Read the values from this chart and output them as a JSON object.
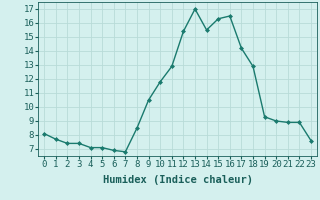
{
  "x": [
    0,
    1,
    2,
    3,
    4,
    5,
    6,
    7,
    8,
    9,
    10,
    11,
    12,
    13,
    14,
    15,
    16,
    17,
    18,
    19,
    20,
    21,
    22,
    23
  ],
  "y": [
    8.1,
    7.7,
    7.4,
    7.4,
    7.1,
    7.1,
    6.9,
    6.8,
    8.5,
    10.5,
    11.8,
    12.9,
    15.4,
    17.0,
    15.5,
    16.3,
    16.5,
    14.2,
    12.9,
    9.3,
    9.0,
    8.9,
    8.9,
    7.6
  ],
  "line_color": "#1a7a6e",
  "marker_color": "#1a7a6e",
  "bg_color": "#d4f0ee",
  "grid_color": "#b8dbd8",
  "xlabel": "Humidex (Indice chaleur)",
  "xlabel_color": "#1a5f5a",
  "tick_color": "#1a5f5a",
  "ylim": [
    6.5,
    17.5
  ],
  "yticks": [
    7,
    8,
    9,
    10,
    11,
    12,
    13,
    14,
    15,
    16,
    17
  ],
  "xlim": [
    -0.5,
    23.5
  ],
  "xticks": [
    0,
    1,
    2,
    3,
    4,
    5,
    6,
    7,
    8,
    9,
    10,
    11,
    12,
    13,
    14,
    15,
    16,
    17,
    18,
    19,
    20,
    21,
    22,
    23
  ],
  "xtick_labels": [
    "0",
    "1",
    "2",
    "3",
    "4",
    "5",
    "6",
    "7",
    "8",
    "9",
    "10",
    "11",
    "12",
    "13",
    "14",
    "15",
    "16",
    "17",
    "18",
    "19",
    "20",
    "21",
    "22",
    "23"
  ],
  "font_size": 6.5,
  "xlabel_font_size": 7.5
}
